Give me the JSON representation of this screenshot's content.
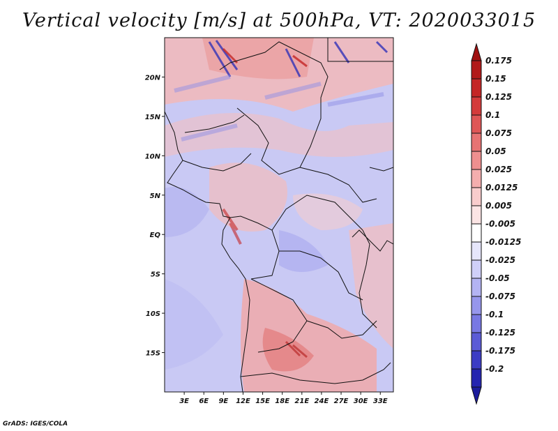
{
  "title": "Vertical velocity [m/s] at 500hPa, VT: 2020033015",
  "credit": "GrADS: IGES/COLA",
  "map": {
    "region": "Central and Southern Africa",
    "lon_range": [
      0,
      35
    ],
    "lat_range": [
      -20,
      25
    ],
    "lat_ticks": [
      {
        "value": 20,
        "label": "20N"
      },
      {
        "value": 15,
        "label": "15N"
      },
      {
        "value": 10,
        "label": "10N"
      },
      {
        "value": 5,
        "label": "5N"
      },
      {
        "value": 0,
        "label": "EQ"
      },
      {
        "value": -5,
        "label": "5S"
      },
      {
        "value": -10,
        "label": "10S"
      },
      {
        "value": -15,
        "label": "15S"
      }
    ],
    "lon_ticks": [
      {
        "value": 3,
        "label": "3E"
      },
      {
        "value": 6,
        "label": "6E"
      },
      {
        "value": 9,
        "label": "9E"
      },
      {
        "value": 12,
        "label": "12E"
      },
      {
        "value": 15,
        "label": "15E"
      },
      {
        "value": 18,
        "label": "18E"
      },
      {
        "value": 21,
        "label": "21E"
      },
      {
        "value": 24,
        "label": "24E"
      },
      {
        "value": 27,
        "label": "27E"
      },
      {
        "value": 30,
        "label": "30E"
      },
      {
        "value": 33,
        "label": "33E"
      }
    ]
  },
  "colorbar": {
    "levels": [
      {
        "label": "0.175",
        "color": "#b11919"
      },
      {
        "label": "0.15",
        "color": "#c42626"
      },
      {
        "label": "0.125",
        "color": "#d43b3b"
      },
      {
        "label": "0.1",
        "color": "#df5656"
      },
      {
        "label": "0.075",
        "color": "#e77373"
      },
      {
        "label": "0.05",
        "color": "#ee8f8f"
      },
      {
        "label": "0.025",
        "color": "#f4aeae"
      },
      {
        "label": "0.0125",
        "color": "#f8cccc"
      },
      {
        "label": "0.005",
        "color": "#fbe4e4"
      },
      {
        "label": "-0.005",
        "color": "#ffffff"
      },
      {
        "label": "-0.0125",
        "color": "#e6e6fb"
      },
      {
        "label": "-0.025",
        "color": "#cfcff8"
      },
      {
        "label": "-0.05",
        "color": "#b3b3f3"
      },
      {
        "label": "-0.075",
        "color": "#9696ec"
      },
      {
        "label": "-0.1",
        "color": "#7878e3"
      },
      {
        "label": "-0.125",
        "color": "#5b5bd6"
      },
      {
        "label": "-0.175",
        "color": "#3c3cc4"
      },
      {
        "label": "-0.2",
        "color": "#2424b0"
      }
    ],
    "top_cap_color": "#a01010",
    "bottom_cap_color": "#1c1c9c"
  }
}
